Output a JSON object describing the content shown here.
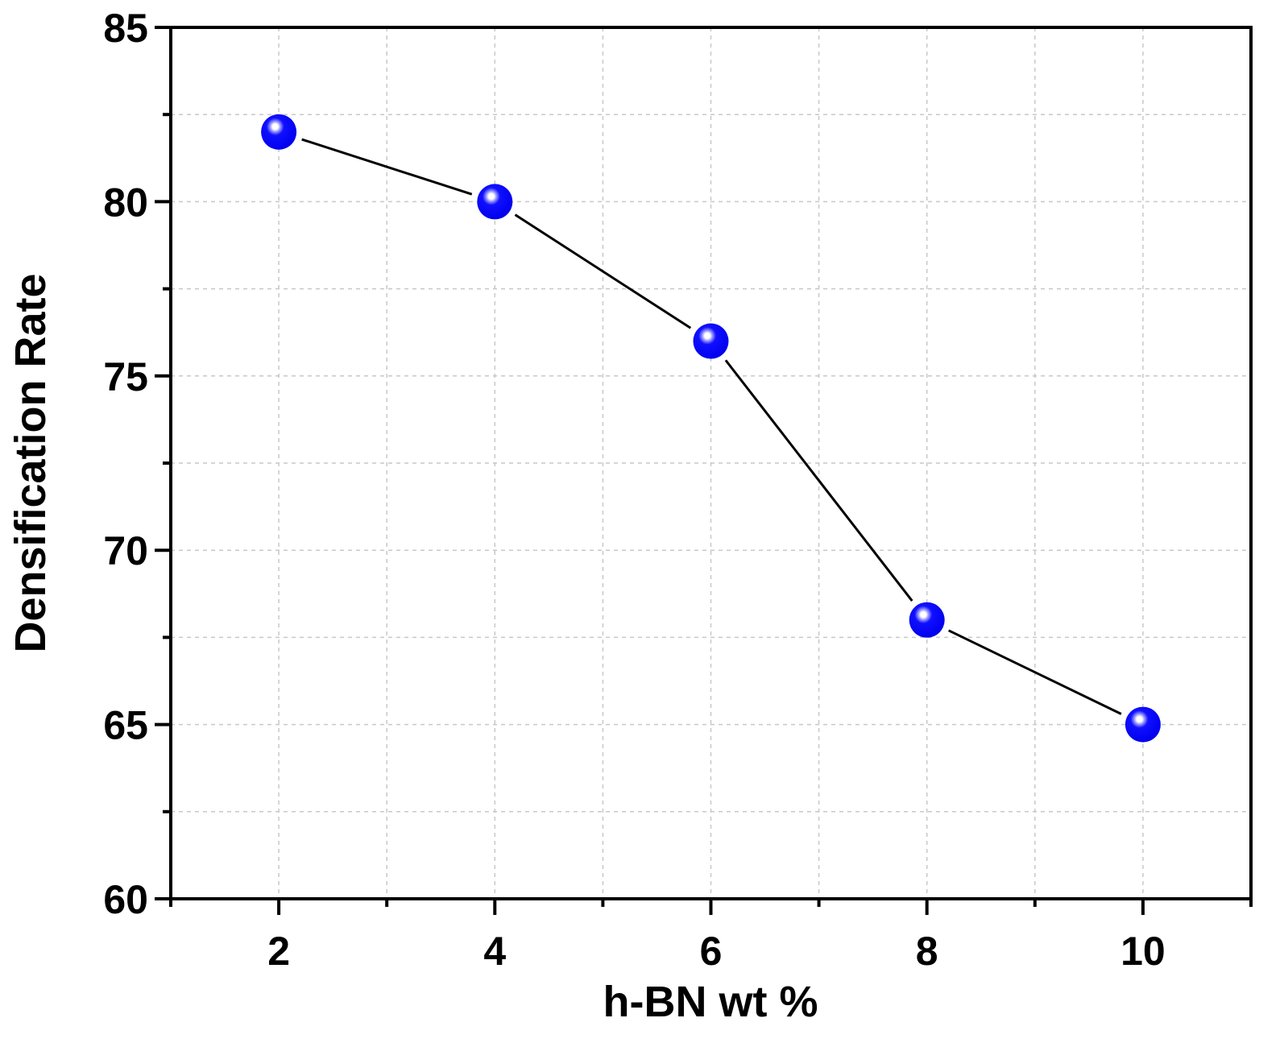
{
  "chart_data": {
    "type": "line",
    "title": "",
    "xlabel": "h-BN wt %",
    "ylabel": "Densification Rate",
    "x": [
      2,
      4,
      6,
      8,
      10
    ],
    "series": [
      {
        "name": "Densification Rate",
        "values": [
          82,
          80,
          76,
          68,
          65
        ],
        "marker_color": "#0000ff",
        "line_color": "#000000"
      }
    ],
    "xlim": [
      1,
      11
    ],
    "ylim": [
      60,
      85
    ],
    "xticks": [
      2,
      4,
      6,
      8,
      10
    ],
    "xtick_labels": [
      "2",
      "4",
      "6",
      "8",
      "10"
    ],
    "yticks": [
      60,
      65,
      70,
      75,
      80,
      85
    ],
    "ytick_labels": [
      "60",
      "65",
      "70",
      "75",
      "80",
      "85"
    ],
    "x_minor_step": 1,
    "y_minor_step": 2.5,
    "grid": true,
    "legend": "none"
  }
}
